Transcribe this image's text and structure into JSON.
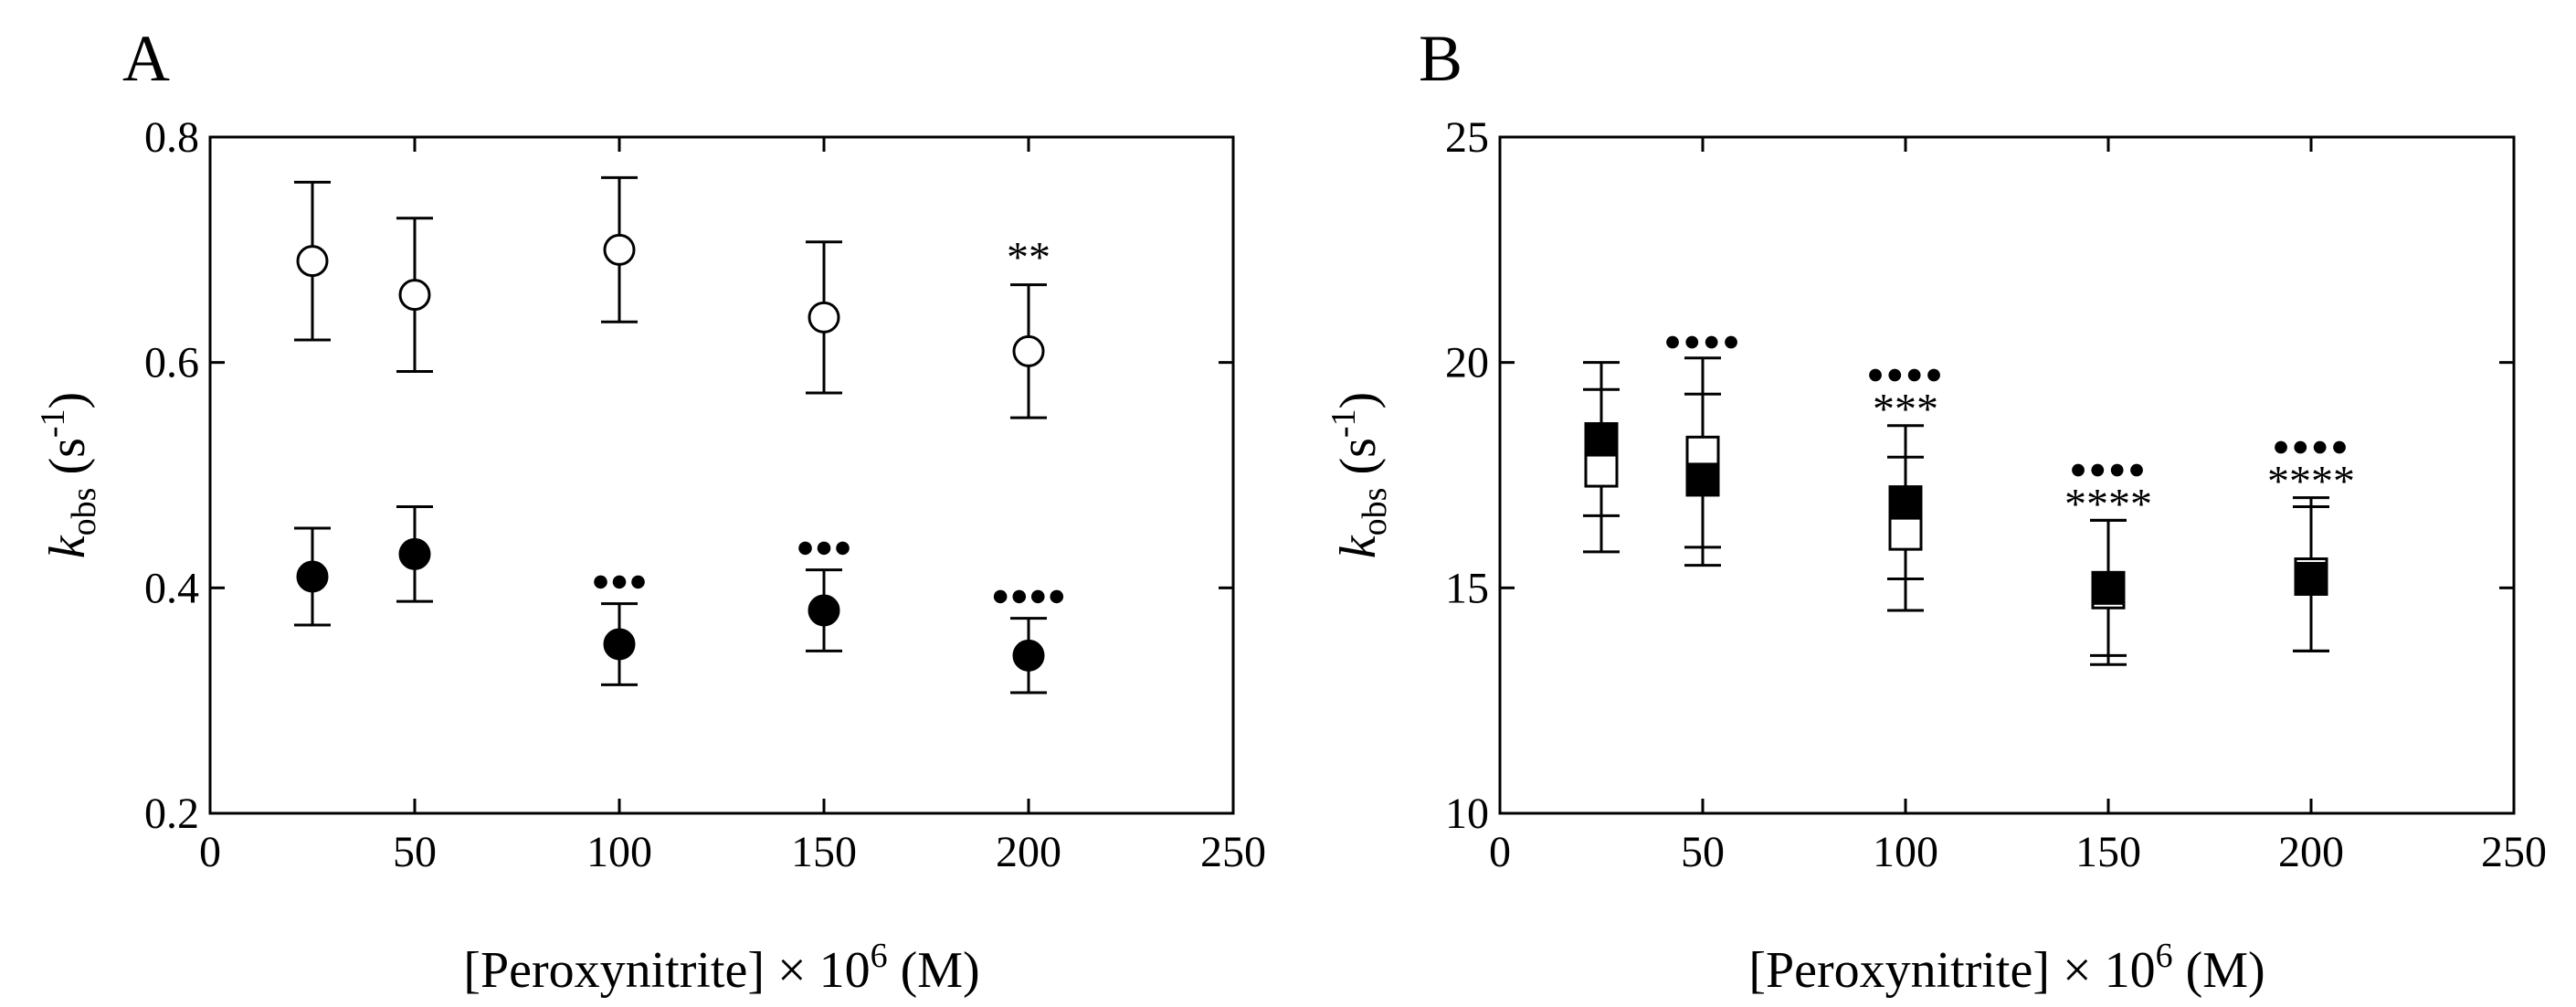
{
  "chart_data": [
    {
      "panel_label": "A",
      "type": "scatter",
      "xlabel": {
        "pre": "[Peroxynitrite] × 10",
        "sup": "6",
        "post": " (M)"
      },
      "ylabel": {
        "k": "k",
        "sub": "obs",
        "unit_open": " (s",
        "sup": "-1",
        "unit_close": ")"
      },
      "xlim": [
        0,
        250
      ],
      "ylim": [
        0.2,
        0.8
      ],
      "xticks": [
        0,
        50,
        100,
        150,
        200,
        250
      ],
      "xtick_labels": [
        "0",
        "50",
        "100",
        "150",
        "200",
        "250"
      ],
      "yticks": [
        0.2,
        0.4,
        0.6,
        0.8
      ],
      "ytick_labels": [
        "0.2",
        "0.4",
        "0.6",
        "0.8"
      ],
      "series": [
        {
          "name": "open-circles",
          "marker": "circle-open",
          "points": [
            {
              "x": 25,
              "y": 0.69,
              "err": 0.07
            },
            {
              "x": 50,
              "y": 0.66,
              "err": 0.068
            },
            {
              "x": 100,
              "y": 0.7,
              "err": 0.064
            },
            {
              "x": 150,
              "y": 0.64,
              "err": 0.067
            },
            {
              "x": 200,
              "y": 0.61,
              "err": 0.059,
              "annotation": "**"
            }
          ]
        },
        {
          "name": "filled-circles",
          "marker": "circle-filled",
          "points": [
            {
              "x": 25,
              "y": 0.41,
              "err": 0.043
            },
            {
              "x": 50,
              "y": 0.43,
              "err": 0.042
            },
            {
              "x": 100,
              "y": 0.35,
              "err": 0.036,
              "annotation": "●●●"
            },
            {
              "x": 150,
              "y": 0.38,
              "err": 0.036,
              "annotation": "●●●"
            },
            {
              "x": 200,
              "y": 0.34,
              "err": 0.033,
              "annotation": "●●●●"
            }
          ]
        }
      ]
    },
    {
      "panel_label": "B",
      "type": "scatter",
      "xlabel": {
        "pre": "[Peroxynitrite] × 10",
        "sup": "6",
        "post": " (M)"
      },
      "ylabel": {
        "k": "k",
        "sub": "obs",
        "unit_open": " (s",
        "sup": "-1",
        "unit_close": ")"
      },
      "xlim": [
        0,
        250
      ],
      "ylim": [
        10,
        25
      ],
      "xticks": [
        0,
        50,
        100,
        150,
        200,
        250
      ],
      "xtick_labels": [
        "0",
        "50",
        "100",
        "150",
        "200",
        "250"
      ],
      "yticks": [
        10,
        15,
        20,
        25
      ],
      "ytick_labels": [
        "10",
        "15",
        "20",
        "25"
      ],
      "series": [
        {
          "name": "open-squares",
          "marker": "square-open",
          "points": [
            {
              "x": 25,
              "y": 17.6,
              "err": 1.8
            },
            {
              "x": 50,
              "y": 18.0,
              "err": 2.1
            },
            {
              "x": 100,
              "y": 16.2,
              "err": 1.7
            },
            {
              "x": 150,
              "y": 14.9,
              "err": 1.6
            },
            {
              "x": 200,
              "y": 15.3,
              "err": 1.7
            }
          ]
        },
        {
          "name": "filled-squares",
          "marker": "square-filled",
          "points": [
            {
              "x": 25,
              "y": 18.3,
              "err": 1.7
            },
            {
              "x": 50,
              "y": 17.4,
              "err": 1.9
            },
            {
              "x": 100,
              "y": 16.9,
              "err": 1.7
            },
            {
              "x": 150,
              "y": 15.0,
              "err": 1.5
            },
            {
              "x": 200,
              "y": 15.2,
              "err": 1.6
            }
          ]
        }
      ],
      "annotations": [
        {
          "x": 50,
          "dots": "●●●●",
          "stars": ""
        },
        {
          "x": 100,
          "dots": "●●●●",
          "stars": "***"
        },
        {
          "x": 150,
          "dots": "●●●●",
          "stars": "****"
        },
        {
          "x": 200,
          "dots": "●●●●",
          "stars": "****"
        }
      ]
    }
  ]
}
